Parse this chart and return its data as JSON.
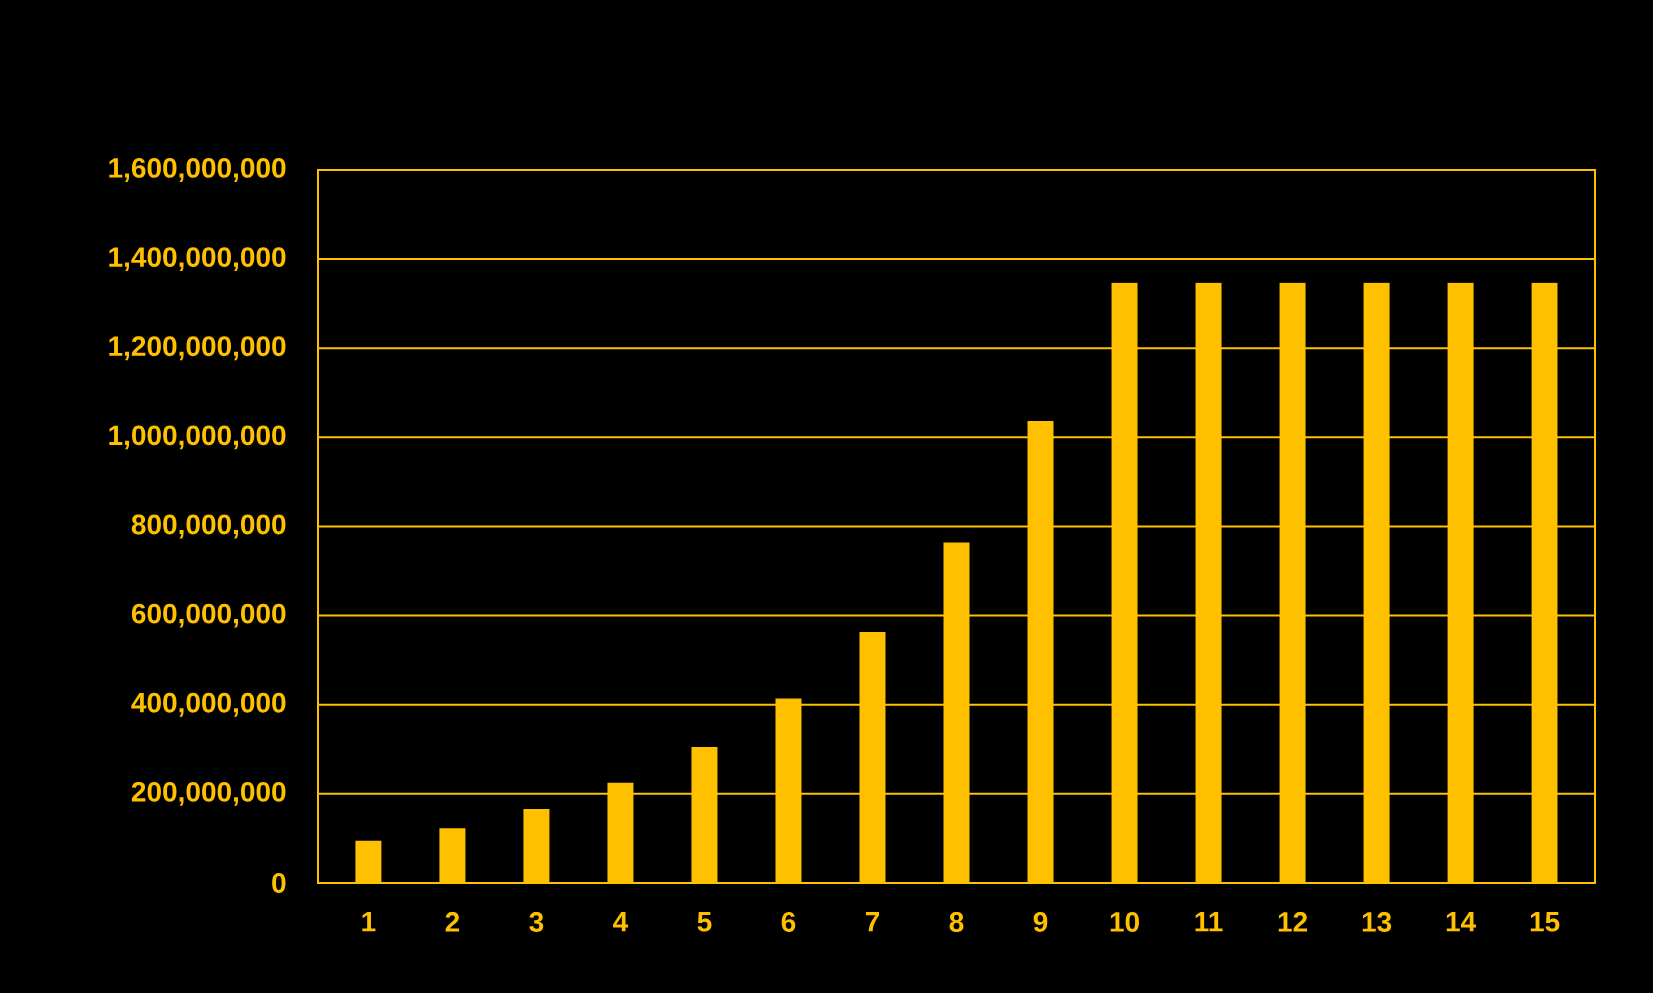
{
  "chart_data": {
    "type": "bar",
    "categories": [
      "1",
      "2",
      "3",
      "4",
      "5",
      "6",
      "7",
      "8",
      "9",
      "10",
      "11",
      "12",
      "13",
      "14",
      "15"
    ],
    "values": [
      95000000,
      123000000,
      166000000,
      225000000,
      305000000,
      414000000,
      563000000,
      764000000,
      1037000000,
      1347000000,
      1347000000,
      1347000000,
      1347000000,
      1347000000,
      1347000000
    ],
    "color": "#ffc000",
    "ylim": [
      0,
      1600000000
    ],
    "yticks": [
      {
        "value": 0,
        "label": "0"
      },
      {
        "value": 200000000,
        "label": "200,000,000"
      },
      {
        "value": 400000000,
        "label": "400,000,000"
      },
      {
        "value": 600000000,
        "label": "600,000,000"
      },
      {
        "value": 800000000,
        "label": "800,000,000"
      },
      {
        "value": 1000000000,
        "label": "1,000,000,000"
      },
      {
        "value": 1200000000,
        "label": "1,200,000,000"
      },
      {
        "value": 1400000000,
        "label": "1,400,000,000"
      },
      {
        "value": 1600000000,
        "label": "1,600,000,000"
      }
    ],
    "grid": "y"
  }
}
